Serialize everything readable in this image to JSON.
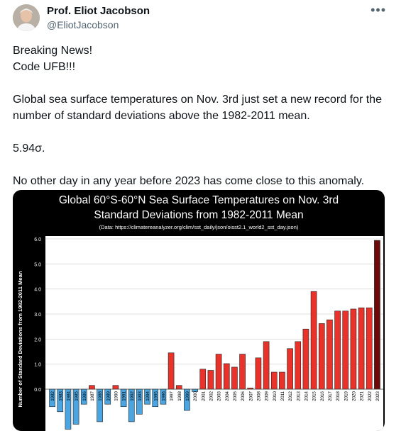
{
  "header": {
    "name": "Prof. Eliot Jacobson",
    "handle": "@EliotJacobson",
    "more_icon": "more-horizontal-icon",
    "avatar_icon": "profile-photo"
  },
  "tweet": {
    "paragraphs": [
      "Breaking News!\nCode UFB!!!",
      "Global sea surface temperatures on Nov. 3rd just set a new record for the number of standard deviations above the 1982-2011 mean.",
      "5.94σ.",
      "No other day in any year before 2023 has come close to this anomaly."
    ]
  },
  "chart_data": {
    "type": "bar",
    "title": "Global 60°S-60°N Sea Surface Temperatures on Nov. 3rd",
    "subtitle": "Standard Deviations from 1982-2011 Mean",
    "source": "(Data: https://climatereanalyzer.org/clim/sst_daily/json/oisst2.1_world2_sst_day.json)",
    "ylabel": "Number of Standard Deviations from 1982-2011 Mean",
    "xlabel": "",
    "ylim": [
      -1.3,
      6.0
    ],
    "yticks": [
      "6.0",
      "5.0",
      "4.0",
      "3.0",
      "2.0",
      "1.0",
      "0.0"
    ],
    "grid": true,
    "legend": "none",
    "colors": {
      "positive": "#e8322a",
      "negative": "#4aa5e0",
      "record": "#6b0a0a",
      "background": "#000000",
      "plot_bg": "#ffffff"
    },
    "categories": [
      "1982",
      "1983",
      "1984",
      "1985",
      "1986",
      "1987",
      "1988",
      "1989",
      "1990",
      "1991",
      "1992",
      "1993",
      "1994",
      "1995",
      "1996",
      "1997",
      "1998",
      "1999",
      "2000",
      "2001",
      "2002",
      "2003",
      "2004",
      "2005",
      "2006",
      "2007",
      "2008",
      "2009",
      "2010",
      "2011",
      "2012",
      "2013",
      "2014",
      "2015",
      "2016",
      "2017",
      "2018",
      "2019",
      "2020",
      "2021",
      "2022",
      "2023"
    ],
    "values": [
      -0.7,
      -0.9,
      -1.6,
      -1.4,
      -0.6,
      0.15,
      -1.3,
      -0.6,
      0.15,
      -0.7,
      -1.3,
      -1.0,
      -0.6,
      -0.7,
      -0.6,
      1.45,
      0.15,
      -0.85,
      -0.1,
      0.8,
      0.75,
      1.4,
      1.02,
      0.88,
      1.4,
      0.05,
      1.25,
      1.9,
      0.68,
      0.68,
      1.62,
      1.9,
      2.4,
      3.9,
      2.62,
      2.77,
      3.12,
      3.12,
      3.2,
      3.25,
      3.25,
      5.94
    ]
  }
}
